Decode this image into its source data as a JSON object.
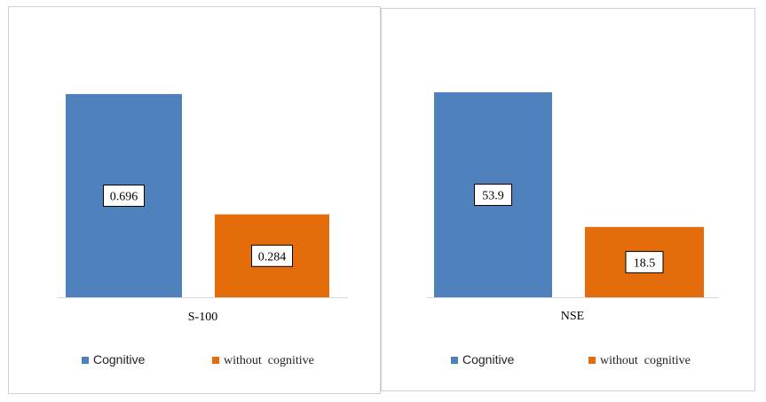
{
  "chart_data": [
    {
      "type": "bar",
      "categories": [
        "S-100"
      ],
      "series": [
        {
          "name": "Cognitive",
          "values": [
            0.696
          ],
          "color": "#4f81bd"
        },
        {
          "name": "without  cognitive",
          "values": [
            0.284
          ],
          "color": "#e46c0a"
        }
      ],
      "data_labels": [
        "0.696",
        "0.284"
      ],
      "ylim": [
        0,
        0.696
      ],
      "grid": false,
      "legend_position": "bottom"
    },
    {
      "type": "bar",
      "categories": [
        "NSE"
      ],
      "series": [
        {
          "name": "Cognitive",
          "values": [
            53.9
          ],
          "color": "#4f81bd"
        },
        {
          "name": "without  cognitive",
          "values": [
            18.5
          ],
          "color": "#e46c0a"
        }
      ],
      "data_labels": [
        "53.9",
        "18.5"
      ],
      "ylim": [
        0,
        53.9
      ],
      "grid": false,
      "legend_position": "bottom"
    }
  ]
}
